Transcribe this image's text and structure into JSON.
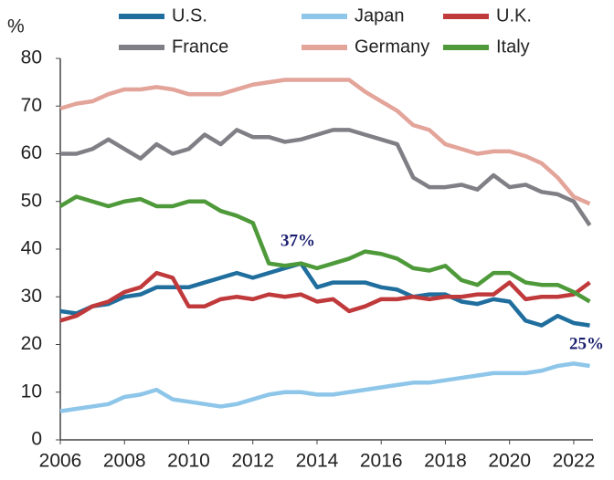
{
  "chart_data": {
    "type": "line",
    "y_label": "%",
    "x": [
      2006,
      2006.5,
      2007,
      2007.5,
      2008,
      2008.5,
      2009,
      2009.5,
      2010,
      2010.5,
      2011,
      2011.5,
      2012,
      2012.5,
      2013,
      2013.5,
      2014,
      2014.5,
      2015,
      2015.5,
      2016,
      2016.5,
      2017,
      2017.5,
      2018,
      2018.5,
      2019,
      2019.5,
      2020,
      2020.5,
      2021,
      2021.5,
      2022,
      2022.5
    ],
    "series": [
      {
        "name": "U.S.",
        "color": "#1f6e9e",
        "values": [
          27,
          26.5,
          28,
          28.5,
          30,
          30.5,
          32,
          32,
          32,
          33,
          34,
          35,
          34,
          35,
          36,
          37,
          32,
          33,
          33,
          33,
          32,
          31.5,
          30,
          30.5,
          30.5,
          29,
          28.5,
          29.5,
          29,
          25,
          24,
          26,
          24.5,
          24
        ]
      },
      {
        "name": "Japan",
        "color": "#8ec6ea",
        "values": [
          6,
          6.5,
          7,
          7.5,
          9,
          9.5,
          10.5,
          8.5,
          8,
          7.5,
          7,
          7.5,
          8.5,
          9.5,
          10,
          10,
          9.5,
          9.5,
          10,
          10.5,
          11,
          11.5,
          12,
          12,
          12.5,
          13,
          13.5,
          14,
          14,
          14,
          14.5,
          15.5,
          16,
          15.5
        ]
      },
      {
        "name": "U.K.",
        "color": "#c0393b",
        "values": [
          25,
          26,
          28,
          29,
          31,
          32,
          35,
          34,
          28,
          28,
          29.5,
          30,
          29.5,
          30.5,
          30,
          30.5,
          29,
          29.5,
          27,
          28,
          29.5,
          29.5,
          30,
          29.5,
          30,
          30,
          30.5,
          30.5,
          33,
          29.5,
          30,
          30,
          30.5,
          33
        ]
      },
      {
        "name": "France",
        "color": "#7f7f85",
        "values": [
          60,
          60,
          61,
          63,
          61,
          59,
          62,
          60,
          61,
          64,
          62,
          65,
          63.5,
          63.5,
          62.5,
          63,
          64,
          65,
          65,
          64,
          63,
          62,
          55,
          53,
          53,
          53.5,
          52.5,
          55.5,
          53,
          53.5,
          52,
          51.5,
          50,
          45
        ]
      },
      {
        "name": "Germany",
        "color": "#e3a49a",
        "values": [
          69.5,
          70.5,
          71,
          72.5,
          73.5,
          73.5,
          74,
          73.5,
          72.5,
          72.5,
          72.5,
          73.5,
          74.5,
          75,
          75.5,
          75.5,
          75.5,
          75.5,
          75.5,
          73,
          71,
          69,
          66,
          65,
          62,
          61,
          60,
          60.5,
          60.5,
          59.5,
          58,
          55,
          51,
          49.5
        ]
      },
      {
        "name": "Italy",
        "color": "#4e9a3a",
        "values": [
          49,
          51,
          50,
          49,
          50,
          50.5,
          49,
          49,
          50,
          50,
          48,
          47,
          45.5,
          37,
          36.5,
          37,
          36,
          37,
          38,
          39.5,
          39,
          38,
          36,
          35.5,
          36.5,
          33.5,
          32.5,
          35,
          35,
          33,
          32.5,
          32.5,
          31,
          29
        ]
      }
    ],
    "annotations": [
      "37%",
      "25%"
    ],
    "xlim": [
      2006,
      2022.6
    ],
    "xticks": [
      2006,
      2008,
      2010,
      2012,
      2014,
      2016,
      2018,
      2020,
      2022
    ],
    "ylim": [
      0,
      80
    ],
    "yticks": [
      0,
      10,
      20,
      30,
      40,
      50,
      60,
      70,
      80
    ],
    "grid": false
  }
}
